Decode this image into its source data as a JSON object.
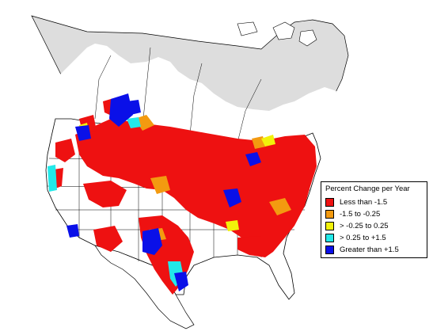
{
  "legend": {
    "title": "Percent Change per Year",
    "items": [
      {
        "label": "Less than -1.5",
        "color": "#ee1111"
      },
      {
        "label": "-1.5 to -0.25",
        "color": "#f39a10"
      },
      {
        "label": "> -0.25 to 0.25",
        "color": "#f2f20a"
      },
      {
        "label": "> 0.25 to +1.5",
        "color": "#22e9e9"
      },
      {
        "label": "Greater than +1.5",
        "color": "#0a10e8"
      }
    ]
  },
  "map": {
    "land_color": "#ffffff",
    "excluded_region_color": "#dddddd",
    "boundary_color": "#000000"
  }
}
